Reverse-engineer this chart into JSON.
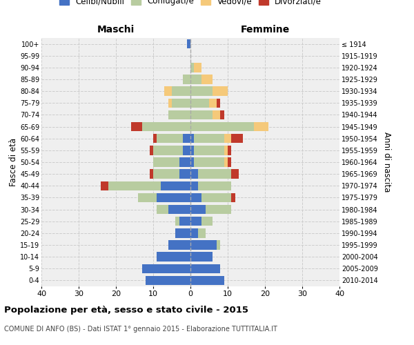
{
  "age_groups": [
    "100+",
    "95-99",
    "90-94",
    "85-89",
    "80-84",
    "75-79",
    "70-74",
    "65-69",
    "60-64",
    "55-59",
    "50-54",
    "45-49",
    "40-44",
    "35-39",
    "30-34",
    "25-29",
    "20-24",
    "15-19",
    "10-14",
    "5-9",
    "0-4"
  ],
  "birth_years": [
    "≤ 1914",
    "1915-1919",
    "1920-1924",
    "1925-1929",
    "1930-1934",
    "1935-1939",
    "1940-1944",
    "1945-1949",
    "1950-1954",
    "1955-1959",
    "1960-1964",
    "1965-1969",
    "1970-1974",
    "1975-1979",
    "1980-1984",
    "1985-1989",
    "1990-1994",
    "1995-1999",
    "2000-2004",
    "2005-2009",
    "2010-2014"
  ],
  "maschi": {
    "celibi": [
      1,
      0,
      0,
      0,
      0,
      0,
      0,
      0,
      2,
      2,
      3,
      3,
      8,
      9,
      6,
      3,
      4,
      6,
      9,
      13,
      12
    ],
    "coniugati": [
      0,
      0,
      0,
      2,
      5,
      5,
      6,
      13,
      7,
      8,
      7,
      7,
      14,
      5,
      3,
      1,
      0,
      0,
      0,
      0,
      0
    ],
    "vedovi": [
      0,
      0,
      0,
      0,
      2,
      1,
      0,
      0,
      0,
      0,
      0,
      0,
      0,
      0,
      0,
      0,
      0,
      0,
      0,
      0,
      0
    ],
    "divorziati": [
      0,
      0,
      0,
      0,
      0,
      0,
      0,
      3,
      1,
      1,
      0,
      1,
      2,
      0,
      0,
      0,
      0,
      0,
      0,
      0,
      0
    ]
  },
  "femmine": {
    "nubili": [
      0,
      0,
      0,
      0,
      0,
      0,
      0,
      0,
      1,
      1,
      1,
      2,
      2,
      3,
      4,
      3,
      2,
      7,
      6,
      8,
      9
    ],
    "coniugate": [
      0,
      0,
      1,
      3,
      6,
      5,
      6,
      17,
      8,
      8,
      8,
      9,
      9,
      8,
      7,
      3,
      2,
      1,
      0,
      0,
      0
    ],
    "vedove": [
      0,
      0,
      2,
      3,
      4,
      2,
      2,
      4,
      2,
      1,
      1,
      0,
      0,
      0,
      0,
      0,
      0,
      0,
      0,
      0,
      0
    ],
    "divorziate": [
      0,
      0,
      0,
      0,
      0,
      1,
      1,
      0,
      3,
      1,
      1,
      2,
      0,
      1,
      0,
      0,
      0,
      0,
      0,
      0,
      0
    ]
  },
  "colors": {
    "celibi": "#4472c4",
    "coniugati": "#b8cca0",
    "vedovi": "#f5c97a",
    "divorziati": "#c0392b"
  },
  "xlim": 40,
  "title": "Popolazione per età, sesso e stato civile - 2015",
  "subtitle": "COMUNE DI ANFO (BS) - Dati ISTAT 1° gennaio 2015 - Elaborazione TUTTITALIA.IT",
  "ylabel_left": "Fasce di età",
  "ylabel_right": "Anni di nascita",
  "xlabel_left": "Maschi",
  "xlabel_right": "Femmine",
  "legend_labels": [
    "Celibi/Nubili",
    "Coniugati/e",
    "Vedovi/e",
    "Divorziati/e"
  ],
  "legend_colors": [
    "#4472c4",
    "#b8cca0",
    "#f5c97a",
    "#c0392b"
  ],
  "bg_color": "#efefef",
  "grid_color": "#cccccc"
}
